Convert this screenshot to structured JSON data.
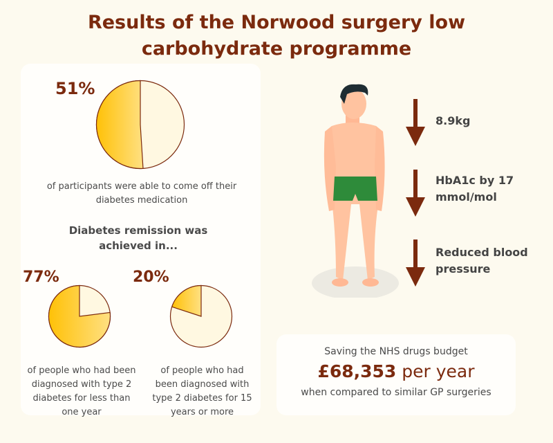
{
  "title": "Results of the Norwood surgery low carbohydrate programme",
  "colors": {
    "accent": "#7b2a0e",
    "pie_fill": "#ffc107",
    "pie_fill_light": "#ffe082",
    "pie_bg": "#fff8e1",
    "shorts": "#2e8b3a"
  },
  "pies": [
    {
      "label": "51%",
      "value": 51,
      "caption": "of participants were able to come off their diabetes medication"
    },
    {
      "label": "77%",
      "value": 77,
      "caption": "of people who had been diagnosed with type 2 diabetes for less than one year"
    },
    {
      "label": "20%",
      "value": 20,
      "caption": "of people who had been diagnosed with type 2 diabetes for 15 years or more"
    }
  ],
  "remission_heading": "Diabetes remission was achieved in...",
  "reductions": [
    {
      "icon": "arrow-down-icon",
      "text": "8.9kg"
    },
    {
      "icon": "arrow-down-icon",
      "text": "HbA1c by 17 mmol/mol"
    },
    {
      "icon": "arrow-down-icon",
      "text": "Reduced blood pressure"
    }
  ],
  "savings": {
    "intro": "Saving the NHS drugs budget",
    "amount": "£68,353",
    "period": "per year",
    "outro": "when compared to similar GP surgeries"
  }
}
